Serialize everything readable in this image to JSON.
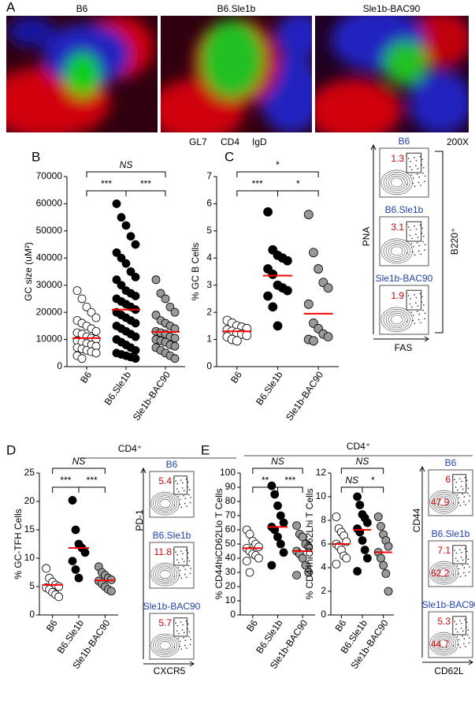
{
  "panel_a": {
    "letter": "A",
    "images": [
      "B6",
      "B6.Sle1b",
      "Sle1b-BAC90"
    ],
    "legend": [
      {
        "text": "GL7",
        "color": "#00c000"
      },
      {
        "text": "CD4",
        "color": "#e00000"
      },
      {
        "text": "IgD",
        "color": "#2020d0"
      }
    ],
    "magnification": "200X"
  },
  "flow_c": {
    "plots": [
      {
        "label": "B6",
        "upper": "1.3"
      },
      {
        "label": "B6.Sle1b",
        "upper": "3.1"
      },
      {
        "label": "Sle1b-BAC90",
        "upper": "1.9"
      }
    ],
    "x_label": "FAS",
    "y_label": "PNA",
    "gate_label": "B220⁺"
  },
  "flow_d": {
    "header": "CD4⁺",
    "plots": [
      {
        "label": "B6",
        "upper": "5.4"
      },
      {
        "label": "B6.Sle1b",
        "upper": "11.8"
      },
      {
        "label": "Sle1b-BAC90",
        "upper": "5.7"
      }
    ],
    "x_label": "CXCR5",
    "y_label": "PD-1"
  },
  "flow_e": {
    "header": "CD4⁺",
    "plots": [
      {
        "label": "B6",
        "upper": "6",
        "lower": "47.9"
      },
      {
        "label": "B6.Sle1b",
        "upper": "7.1",
        "lower": "62.2"
      },
      {
        "label": "Sle1b-BAC90",
        "upper": "5.3",
        "lower": "44.7"
      }
    ],
    "x_label": "CD62L",
    "y_label": "CD44"
  },
  "chart_data": [
    {
      "type": "dot",
      "panel": "B",
      "ylabel": "GC size (uM²)",
      "categories": [
        "B6",
        "B6.Sle1b",
        "Sle1b-BAC90"
      ],
      "ylim": [
        0,
        70000
      ],
      "yticks": [
        0,
        10000,
        20000,
        30000,
        40000,
        50000,
        60000,
        70000
      ],
      "mean_color": "#ff0000",
      "groups": [
        {
          "color": "#ffffff",
          "mean": 10500,
          "values": [
            28000,
            25000,
            22000,
            20000,
            18000,
            17000,
            16000,
            15000,
            14000,
            13000,
            12500,
            12000,
            11000,
            10500,
            10000,
            9500,
            9000,
            8500,
            8000,
            7500,
            7000,
            6500,
            6000,
            5500,
            5000,
            4000,
            3000
          ]
        },
        {
          "color": "#000000",
          "mean": 21000,
          "values": [
            60000,
            55000,
            52000,
            48000,
            45000,
            42000,
            40000,
            38000,
            35000,
            33000,
            32000,
            30000,
            28000,
            27000,
            26000,
            25000,
            24000,
            23000,
            22000,
            21000,
            20000,
            19000,
            18000,
            17000,
            16000,
            15000,
            14000,
            13000,
            12000,
            11000,
            10000,
            9000,
            8000,
            7000,
            6000,
            5000,
            4500,
            4000,
            3500,
            3000
          ]
        },
        {
          "color": "#999999",
          "mean": 12800,
          "values": [
            32000,
            27000,
            25000,
            22000,
            20000,
            19000,
            17000,
            16000,
            15000,
            14000,
            13000,
            12500,
            12000,
            11000,
            10500,
            10000,
            9500,
            9000,
            8000,
            7500,
            7000,
            6000,
            5000,
            4000,
            3000
          ]
        }
      ],
      "brackets": [
        {
          "between": [
            0,
            2
          ],
          "label": "NS"
        },
        {
          "between": [
            0,
            1
          ],
          "label": "***"
        },
        {
          "between": [
            1,
            2
          ],
          "label": "***"
        }
      ]
    },
    {
      "type": "dot",
      "panel": "C",
      "ylabel": "% GC B Cells",
      "categories": [
        "B6",
        "B6.Sle1b",
        "Sle1b-BAC90"
      ],
      "ylim": [
        0,
        7
      ],
      "yticks": [
        0,
        1,
        2,
        3,
        4,
        5,
        6,
        7
      ],
      "mean_color": "#ff0000",
      "groups": [
        {
          "color": "#ffffff",
          "mean": 1.3,
          "values": [
            1.7,
            1.6,
            1.5,
            1.45,
            1.4,
            1.35,
            1.3,
            1.25,
            1.2,
            1.15,
            1.1,
            1.0,
            0.95
          ]
        },
        {
          "color": "#000000",
          "mean": 3.35,
          "values": [
            5.7,
            4.3,
            4.1,
            4.0,
            3.9,
            3.6,
            3.4,
            3.0,
            2.9,
            2.8,
            2.6,
            2.2,
            1.5
          ]
        },
        {
          "color": "#999999",
          "mean": 1.95,
          "values": [
            5.6,
            4.2,
            3.6,
            3.1,
            2.9,
            2.3,
            1.6,
            1.4,
            1.2,
            1.1,
            1.0,
            0.95
          ]
        }
      ],
      "brackets": [
        {
          "between": [
            0,
            2
          ],
          "label": "*"
        },
        {
          "between": [
            0,
            1
          ],
          "label": "***"
        },
        {
          "between": [
            1,
            2
          ],
          "label": "*"
        }
      ]
    },
    {
      "type": "dot",
      "panel": "D",
      "ylabel": "% GC-TFH Cells",
      "categories": [
        "B6",
        "B6.Sle1b",
        "Sle1b-BAC90"
      ],
      "ylim": [
        0,
        25
      ],
      "yticks": [
        0,
        5,
        10,
        15,
        20,
        25
      ],
      "mean_color": "#ff0000",
      "groups": [
        {
          "color": "#ffffff",
          "mean": 5.3,
          "values": [
            8.2,
            6.5,
            5.8,
            5.3,
            5.0,
            4.8,
            4.5,
            4.0,
            3.6,
            3.2
          ]
        },
        {
          "color": "#000000",
          "mean": 11.8,
          "values": [
            20.2,
            15,
            12.5,
            11.8,
            11,
            9.5,
            8,
            6.5
          ]
        },
        {
          "color": "#999999",
          "mean": 6.1,
          "values": [
            8.5,
            7.5,
            7,
            6.5,
            6.2,
            6,
            5.5,
            5,
            4.5,
            4.2
          ]
        }
      ],
      "brackets": [
        {
          "between": [
            0,
            2
          ],
          "label": "NS"
        },
        {
          "between": [
            0,
            1
          ],
          "label": "***"
        },
        {
          "between": [
            1,
            2
          ],
          "label": "***"
        }
      ]
    },
    {
      "type": "dot",
      "panel": "E",
      "ylabel": "% CD44hiCD62Llo T Cells",
      "categories": [
        "B6",
        "B6.Sle1b",
        "Sle1b-BAC90"
      ],
      "ylim": [
        0,
        100
      ],
      "yticks": [
        0,
        10,
        20,
        30,
        40,
        50,
        60,
        70,
        80,
        90,
        100
      ],
      "mean_color": "#ff0000",
      "groups": [
        {
          "color": "#ffffff",
          "mean": 47,
          "values": [
            60,
            57,
            52,
            50,
            48,
            47,
            45,
            43,
            42,
            40,
            38,
            30
          ]
        },
        {
          "color": "#000000",
          "mean": 62,
          "values": [
            91,
            85,
            77,
            70,
            65,
            62,
            60,
            55,
            50,
            44,
            35
          ]
        },
        {
          "color": "#999999",
          "mean": 45,
          "values": [
            63,
            57,
            55,
            50,
            48,
            45,
            43,
            40,
            35,
            30,
            28
          ]
        }
      ],
      "brackets": [
        {
          "between": [
            0,
            2
          ],
          "label": "NS"
        },
        {
          "between": [
            0,
            1
          ],
          "label": "**"
        },
        {
          "between": [
            1,
            2
          ],
          "label": "***"
        }
      ]
    },
    {
      "type": "dot",
      "ylabel": "% CD44hiCD62Lhi T Cells",
      "categories": [
        "B6",
        "B6.Sle1b",
        "Sle1b-BAC90"
      ],
      "ylim": [
        0,
        12
      ],
      "yticks": [
        0,
        2,
        4,
        6,
        8,
        10,
        12
      ],
      "mean_color": "#ff0000",
      "groups": [
        {
          "color": "#ffffff",
          "mean": 6,
          "values": [
            8.3,
            7.3,
            7,
            6.7,
            6.2,
            6,
            5.8,
            5.5,
            5,
            4.8,
            4.3
          ]
        },
        {
          "color": "#000000",
          "mean": 7.2,
          "values": [
            10,
            9.3,
            8.5,
            8.2,
            7.8,
            7.3,
            7,
            6.3,
            5.5,
            4.8,
            3.7
          ]
        },
        {
          "color": "#999999",
          "mean": 5.3,
          "values": [
            8.3,
            7.5,
            6.8,
            6.3,
            5.8,
            5.3,
            4.8,
            4.2,
            3.5,
            2
          ]
        }
      ],
      "brackets": [
        {
          "between": [
            0,
            2
          ],
          "label": "NS"
        },
        {
          "between": [
            0,
            1
          ],
          "label": "NS"
        },
        {
          "between": [
            1,
            2
          ],
          "label": "*"
        }
      ]
    }
  ]
}
